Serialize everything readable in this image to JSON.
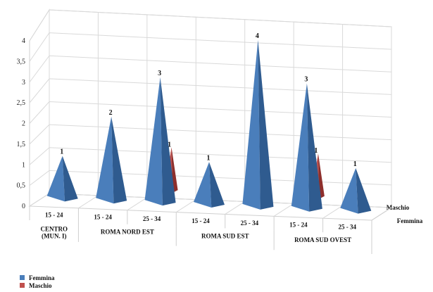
{
  "chart_data": {
    "type": "bar",
    "subtype": "3d-cone",
    "ylim": [
      0,
      4
    ],
    "yticks": [
      "0",
      "0,5",
      "1",
      "1,5",
      "2",
      "2,5",
      "3",
      "3,5",
      "4"
    ],
    "depth_labels": [
      "Maschio",
      "Femmina"
    ],
    "groups": [
      {
        "name": "CENTRO\n(MUN. I)",
        "categories": [
          "15 - 24"
        ]
      },
      {
        "name": "ROMA NORD EST",
        "categories": [
          "15 - 24",
          "25 - 34"
        ]
      },
      {
        "name": "ROMA SUD EST",
        "categories": [
          "15 - 24",
          "25 - 34"
        ]
      },
      {
        "name": "ROMA SUD OVEST",
        "categories": [
          "15 - 24",
          "25 - 34"
        ]
      }
    ],
    "categories": [
      "15 - 24",
      "15 - 24",
      "25 - 34",
      "15 - 24",
      "25 - 34",
      "15 - 24",
      "25 - 34"
    ],
    "series": [
      {
        "name": "Femmina",
        "values": [
          1,
          2,
          3,
          1,
          4,
          3,
          1
        ],
        "color": "#4a7ebb"
      },
      {
        "name": "Maschio",
        "values": [
          null,
          null,
          1,
          null,
          null,
          1,
          null
        ],
        "color": "#c0504d"
      }
    ],
    "legend": "bottom-left"
  }
}
